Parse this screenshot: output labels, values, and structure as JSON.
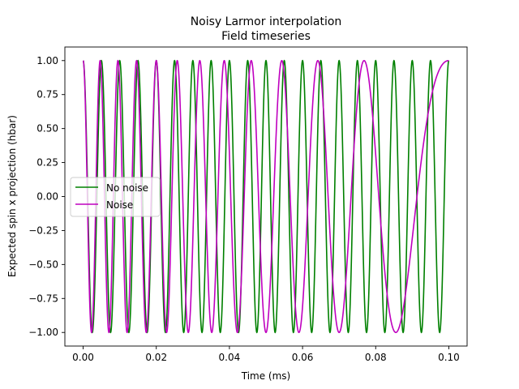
{
  "chart_data": {
    "type": "line",
    "title": "Noisy Larmor interpolation",
    "subtitle": "Field timeseries",
    "xlabel": "Time (ms)",
    "ylabel": "Expected spin x projection (hbar)",
    "xlim": [
      -0.005,
      0.105
    ],
    "ylim": [
      -1.1,
      1.1
    ],
    "xticks": [
      "0.00",
      "0.02",
      "0.04",
      "0.06",
      "0.08",
      "0.10"
    ],
    "xtick_values": [
      0.0,
      0.02,
      0.04,
      0.06,
      0.08,
      0.1
    ],
    "yticks": [
      "1.00",
      "0.75",
      "0.50",
      "0.25",
      "0.00",
      "−0.25",
      "−0.50",
      "−0.75",
      "−1.00"
    ],
    "ytick_values": [
      1.0,
      0.75,
      0.5,
      0.25,
      0.0,
      -0.25,
      -0.5,
      -0.75,
      -1.0
    ],
    "grid": false,
    "legend_position": "center-left",
    "series": [
      {
        "name": "No noise",
        "color": "#008000",
        "function": "cos(2*pi*f*t)",
        "frequency_per_ms": 200,
        "x_range": [
          0.0,
          0.1
        ]
      },
      {
        "name": "Noise",
        "color": "#bf00bf",
        "function": "cos(2*pi*f*t + 2*pi*w*t^2)",
        "frequency_per_ms": 220,
        "chirp_per_ms2": -1000,
        "x_range": [
          0.0,
          0.1
        ]
      }
    ]
  }
}
